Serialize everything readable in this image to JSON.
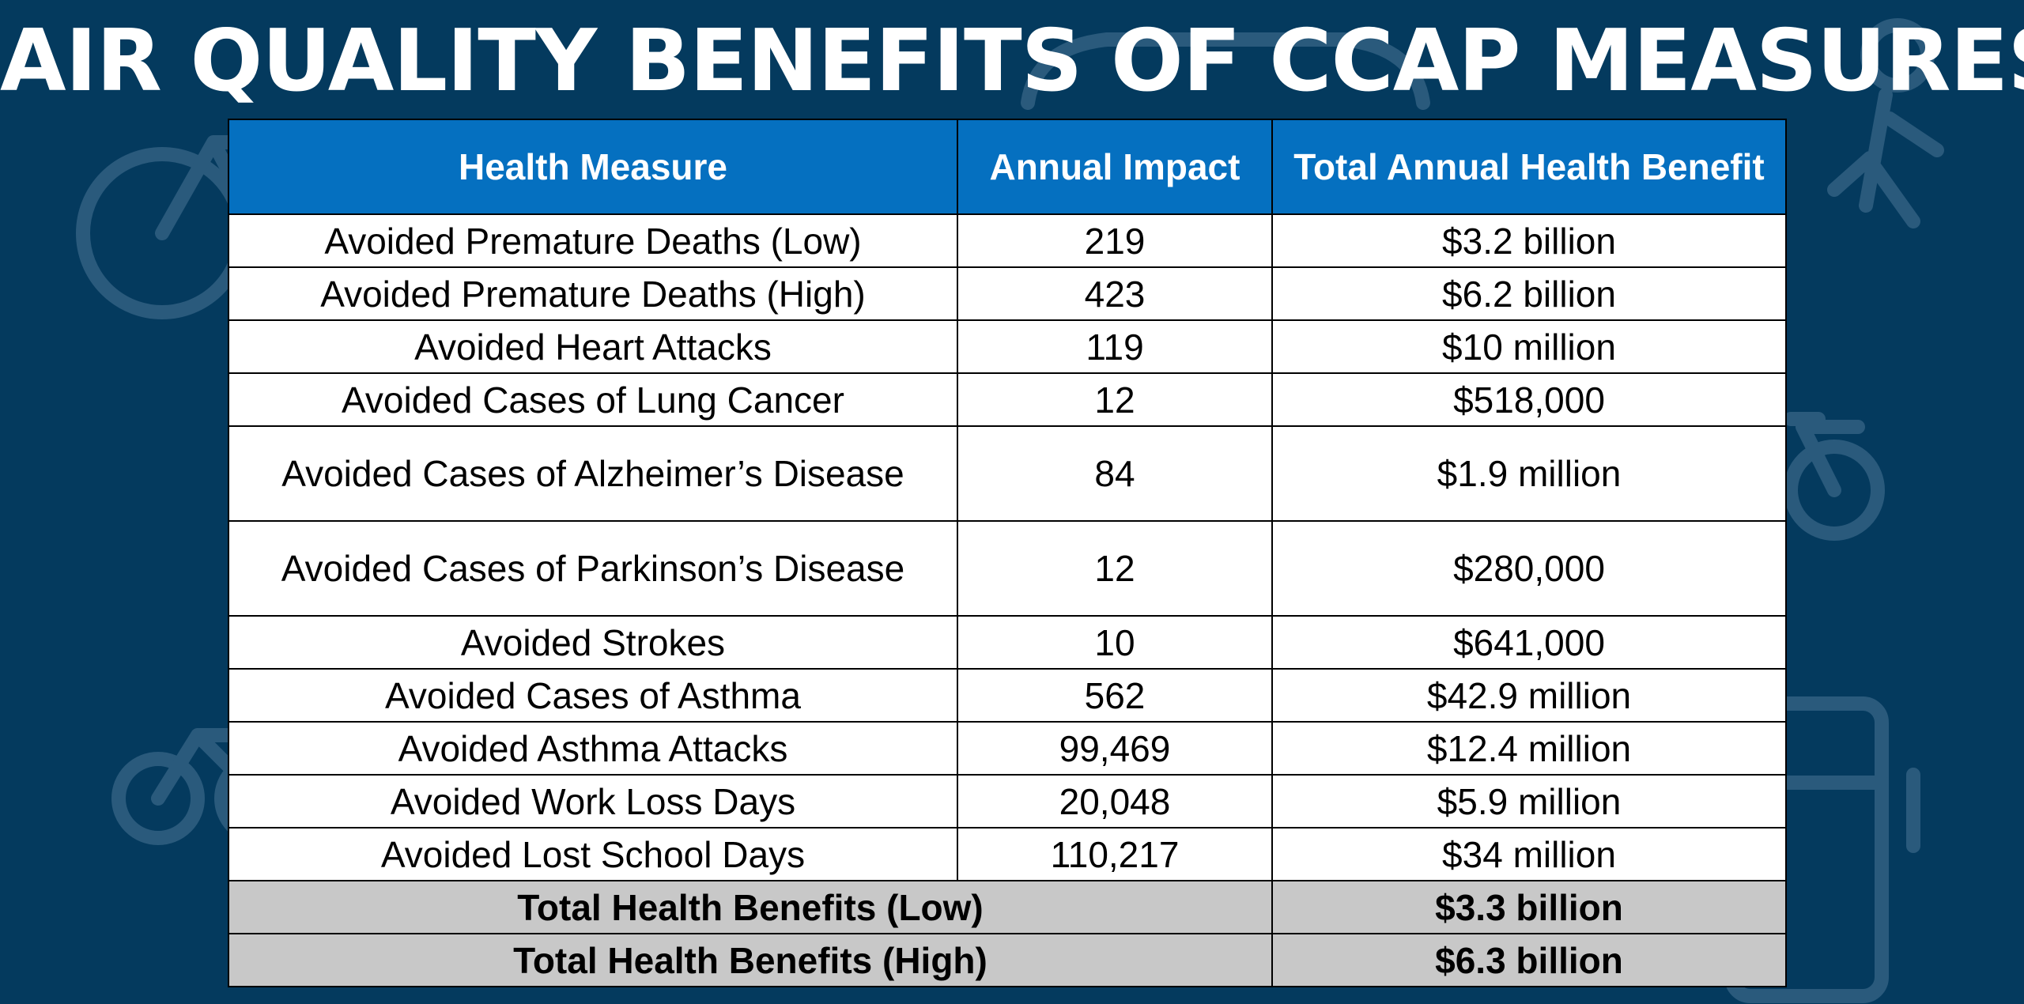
{
  "title": "AIR QUALITY BENEFITS OF CCAP MEASURES",
  "colors": {
    "background": "#043a5e",
    "header_fill": "#0570c0",
    "total_fill": "#c8c8c8",
    "background_icon": "#2a5a7c"
  },
  "background_icons": [
    "bicycle-icon",
    "car-icon",
    "pedestrian-icon",
    "bus-icon"
  ],
  "table": {
    "headers": [
      "Health Measure",
      "Annual Impact",
      "Total Annual Health Benefit"
    ],
    "rows": [
      {
        "measure": "Avoided Premature Deaths (Low)",
        "impact": "219",
        "benefit": "$3.2 billion"
      },
      {
        "measure": "Avoided Premature Deaths (High)",
        "impact": "423",
        "benefit": "$6.2 billion"
      },
      {
        "measure": "Avoided Heart Attacks",
        "impact": "119",
        "benefit": "$10 million"
      },
      {
        "measure": "Avoided Cases of Lung Cancer",
        "impact": "12",
        "benefit": "$518,000"
      },
      {
        "measure": "Avoided Cases of Alzheimer’s Disease",
        "impact": "84",
        "benefit": "$1.9 million"
      },
      {
        "measure": "Avoided Cases of Parkinson’s Disease",
        "impact": "12",
        "benefit": "$280,000"
      },
      {
        "measure": "Avoided Strokes",
        "impact": "10",
        "benefit": "$641,000"
      },
      {
        "measure": "Avoided Cases of Asthma",
        "impact": "562",
        "benefit": "$42.9 million"
      },
      {
        "measure": "Avoided Asthma Attacks",
        "impact": "99,469",
        "benefit": "$12.4 million"
      },
      {
        "measure": "Avoided Work Loss Days",
        "impact": "20,048",
        "benefit": "$5.9 million"
      },
      {
        "measure": "Avoided Lost School Days",
        "impact": "110,217",
        "benefit": "$34 million"
      }
    ],
    "totals": [
      {
        "label": "Total Health Benefits (Low)",
        "benefit": "$3.3 billion"
      },
      {
        "label": "Total Health Benefits (High)",
        "benefit": "$6.3 billion"
      }
    ]
  }
}
